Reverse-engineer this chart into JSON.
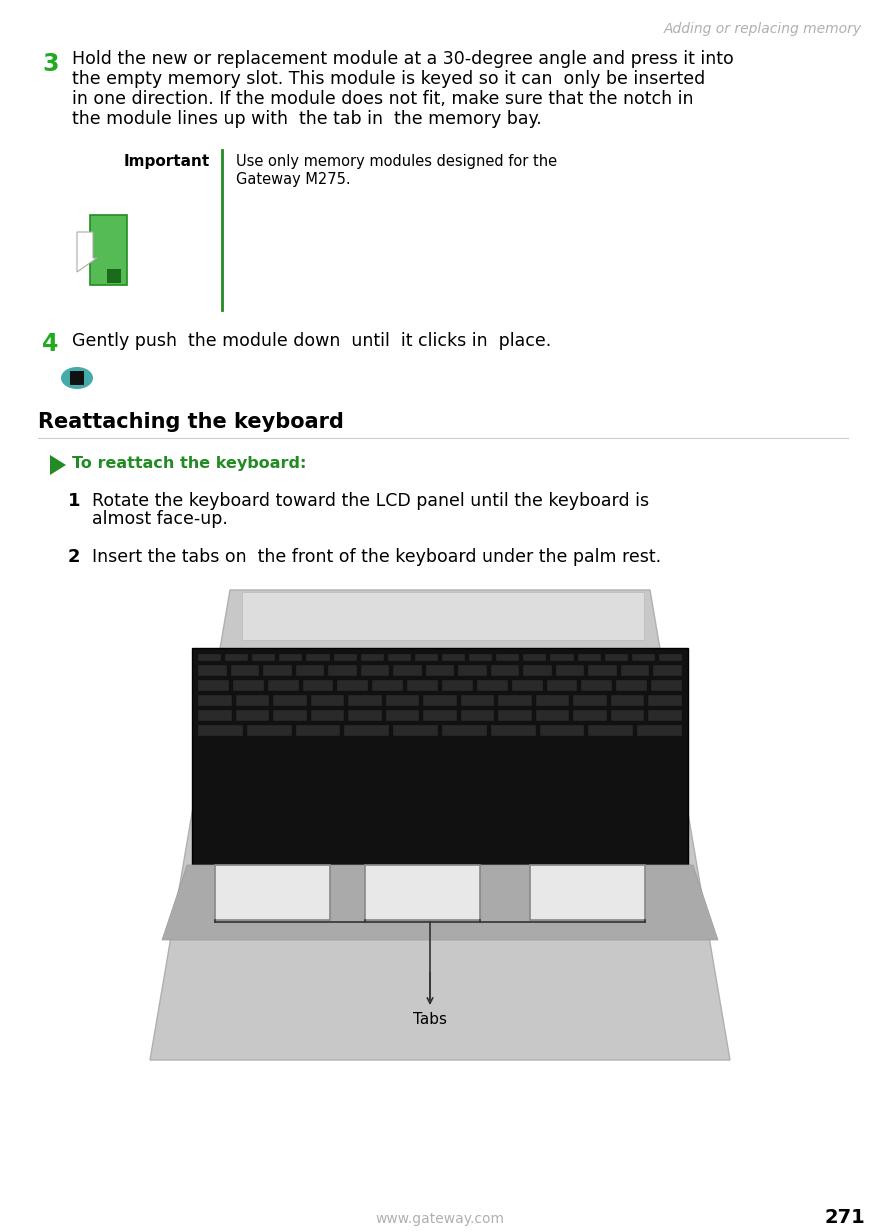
{
  "bg_color": "#ffffff",
  "header_text": "Adding or replacing memory",
  "header_color": "#b0b0b0",
  "header_fontsize": 10,
  "step3_number": "3",
  "step3_color": "#22aa22",
  "step3_fontsize": 17,
  "step3_text_line1": "Hold the new or replacement module at a 30-degree angle and press it into",
  "step3_text_line2": "the empty memory slot. This module is keyed so it can  only be inserted",
  "step3_text_line3": "in one direction. If the module does not fit, make sure that the notch in",
  "step3_text_line4": "the module lines up with  the tab in  the memory bay.",
  "step3_fontsize_body": 12.5,
  "important_label": "Important",
  "important_label_fontsize": 11,
  "important_text_line1": "Use only memory modules designed for the",
  "important_text_line2": "Gateway M275.",
  "important_text_fontsize": 10.5,
  "important_line_color": "#228B22",
  "step4_number": "4",
  "step4_color": "#22aa22",
  "step4_fontsize": 17,
  "step4_text": "Gently push  the module down  until  it clicks in  place.",
  "step4_fontsize_body": 12.5,
  "section_title": "Reattaching the keyboard",
  "section_title_fontsize": 15,
  "procedure_label": "To reattach the keyboard:",
  "procedure_label_fontsize": 11.5,
  "procedure_label_color": "#228B22",
  "step1_text_line1": "Rotate the keyboard toward the LCD panel until the keyboard is",
  "step1_text_line2": "almost face-up.",
  "step1_fontsize_body": 12.5,
  "step2_text": "Insert the tabs on  the front of the keyboard under the palm rest.",
  "step2_fontsize_body": 12.5,
  "tabs_label": "Tabs",
  "footer_url": "www.gateway.com",
  "footer_url_color": "#b0b0b0",
  "footer_page": "271",
  "footer_fontsize": 10
}
